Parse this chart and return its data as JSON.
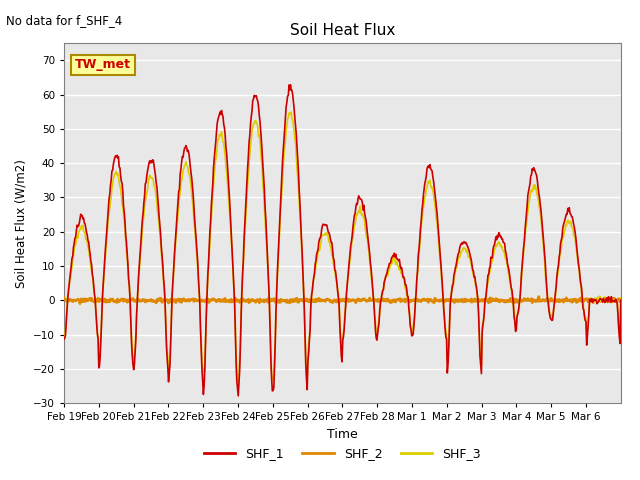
{
  "title": "Soil Heat Flux",
  "subtitle": "No data for f_SHF_4",
  "ylabel": "Soil Heat Flux (W/m2)",
  "xlabel": "Time",
  "ylim": [
    -30,
    75
  ],
  "yticks": [
    -30,
    -20,
    -10,
    0,
    10,
    20,
    30,
    40,
    50,
    60,
    70
  ],
  "legend_label": "TW_met",
  "series_labels": [
    "SHF_1",
    "SHF_2",
    "SHF_3"
  ],
  "series_colors": [
    "#cc0000",
    "#dd8800",
    "#ddcc00"
  ],
  "series_linewidths": [
    1.2,
    2.0,
    1.2
  ],
  "bg_color": "#e8e8e8",
  "xtick_labels": [
    "Feb 19",
    "Feb 20",
    "Feb 21",
    "Feb 22",
    "Feb 23",
    "Feb 24",
    "Feb 25",
    "Feb 26",
    "Feb 27",
    "Feb 28",
    "Mar 1",
    "Mar 2",
    "Mar 3",
    "Mar 4",
    "Mar 5",
    "Mar 6"
  ],
  "n_days": 16,
  "day_peaks": [
    24,
    42,
    41,
    45,
    55,
    60,
    62,
    22,
    30,
    13,
    39,
    17,
    19,
    38,
    26,
    0
  ],
  "day_troughs": [
    -12,
    -20,
    -20,
    -24,
    -27,
    -27,
    -27,
    -18,
    -12,
    -10,
    -11,
    -21,
    -9,
    -5,
    -6,
    -13
  ],
  "peak_phase": 0.55,
  "trough_phase": 0.05
}
